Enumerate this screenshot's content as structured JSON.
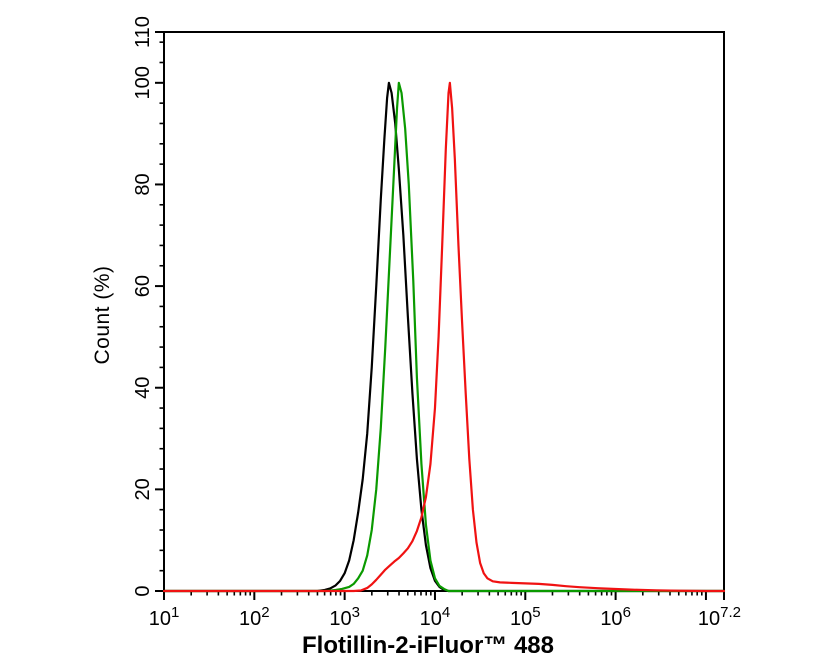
{
  "figure": {
    "background": "#ffffff",
    "axis_color": "#000000"
  },
  "chart_data": {
    "type": "line",
    "title": "",
    "xlabel": "Flotillin-2-iFluor™ 488",
    "ylabel": "Count (%)",
    "x_scale": "log10",
    "x_range_log": [
      1,
      7.2
    ],
    "ylim": [
      0,
      110
    ],
    "grid": false,
    "legend_position": "none",
    "x_major_ticks_log": [
      1,
      2,
      3,
      4,
      5,
      6,
      7,
      7.2
    ],
    "x_minor_ticks": "log-decades 2-9",
    "x_tick_labels": [
      {
        "pos_log": 1.0,
        "base": "10",
        "exp": "1"
      },
      {
        "pos_log": 2.0,
        "base": "10",
        "exp": "2"
      },
      {
        "pos_log": 3.0,
        "base": "10",
        "exp": "3"
      },
      {
        "pos_log": 4.0,
        "base": "10",
        "exp": "4"
      },
      {
        "pos_log": 5.0,
        "base": "10",
        "exp": "5"
      },
      {
        "pos_log": 6.0,
        "base": "10",
        "exp": "6"
      },
      {
        "pos_log": 7.15,
        "base": "10",
        "exp": "7.2"
      }
    ],
    "y_major_ticks": [
      0,
      20,
      40,
      60,
      80,
      100,
      110
    ],
    "y_minor_step": 4,
    "series": [
      {
        "name": "black",
        "color": "#000000",
        "peak_log10": 3.49,
        "peak_pct": 100,
        "points": [
          [
            1.0,
            0
          ],
          [
            2.6,
            0
          ],
          [
            2.7,
            0
          ],
          [
            2.78,
            0.2
          ],
          [
            2.84,
            0.5
          ],
          [
            2.9,
            1.1
          ],
          [
            2.95,
            2
          ],
          [
            3.0,
            3.5
          ],
          [
            3.05,
            6
          ],
          [
            3.1,
            10
          ],
          [
            3.15,
            15.5
          ],
          [
            3.2,
            22
          ],
          [
            3.25,
            31
          ],
          [
            3.3,
            44
          ],
          [
            3.35,
            60
          ],
          [
            3.4,
            77
          ],
          [
            3.44,
            89
          ],
          [
            3.47,
            97
          ],
          [
            3.49,
            100
          ],
          [
            3.52,
            98
          ],
          [
            3.56,
            92
          ],
          [
            3.6,
            83
          ],
          [
            3.65,
            70
          ],
          [
            3.7,
            54
          ],
          [
            3.75,
            39
          ],
          [
            3.8,
            26
          ],
          [
            3.85,
            16
          ],
          [
            3.9,
            9
          ],
          [
            3.95,
            4.5
          ],
          [
            4.0,
            2
          ],
          [
            4.05,
            0.8
          ],
          [
            4.1,
            0.2
          ],
          [
            4.15,
            0
          ],
          [
            7.2,
            0
          ]
        ]
      },
      {
        "name": "green",
        "color": "#0a9a00",
        "peak_log10": 3.6,
        "peak_pct": 100,
        "points": [
          [
            1.0,
            0
          ],
          [
            2.8,
            0
          ],
          [
            2.9,
            0.2
          ],
          [
            2.97,
            0.4
          ],
          [
            3.05,
            0.8
          ],
          [
            3.1,
            1.4
          ],
          [
            3.15,
            2.5
          ],
          [
            3.2,
            4
          ],
          [
            3.25,
            7
          ],
          [
            3.3,
            12
          ],
          [
            3.35,
            20
          ],
          [
            3.4,
            32
          ],
          [
            3.45,
            48
          ],
          [
            3.5,
            66
          ],
          [
            3.55,
            84
          ],
          [
            3.58,
            95
          ],
          [
            3.6,
            100
          ],
          [
            3.63,
            98
          ],
          [
            3.67,
            91
          ],
          [
            3.71,
            80
          ],
          [
            3.76,
            61
          ],
          [
            3.8,
            42
          ],
          [
            3.85,
            25
          ],
          [
            3.9,
            13
          ],
          [
            3.95,
            6
          ],
          [
            4.0,
            2.5
          ],
          [
            4.05,
            1
          ],
          [
            4.1,
            0.4
          ],
          [
            4.15,
            0
          ],
          [
            7.2,
            0
          ]
        ]
      },
      {
        "name": "red",
        "color": "#f01212",
        "peak_log10": 4.16,
        "peak_pct": 100,
        "points": [
          [
            1.0,
            0
          ],
          [
            3.1,
            0
          ],
          [
            3.18,
            0.1
          ],
          [
            3.25,
            0.6
          ],
          [
            3.3,
            1.3
          ],
          [
            3.35,
            2.2
          ],
          [
            3.4,
            3.2
          ],
          [
            3.45,
            4.2
          ],
          [
            3.5,
            5
          ],
          [
            3.55,
            5.8
          ],
          [
            3.6,
            6.5
          ],
          [
            3.65,
            7.4
          ],
          [
            3.7,
            8.4
          ],
          [
            3.75,
            9.8
          ],
          [
            3.8,
            11.8
          ],
          [
            3.85,
            14.5
          ],
          [
            3.9,
            18.5
          ],
          [
            3.95,
            25
          ],
          [
            4.0,
            36
          ],
          [
            4.04,
            50
          ],
          [
            4.08,
            68
          ],
          [
            4.12,
            87
          ],
          [
            4.15,
            98
          ],
          [
            4.165,
            100
          ],
          [
            4.19,
            95
          ],
          [
            4.22,
            85
          ],
          [
            4.26,
            68
          ],
          [
            4.3,
            53
          ],
          [
            4.34,
            39
          ],
          [
            4.38,
            26
          ],
          [
            4.42,
            16
          ],
          [
            4.46,
            9.5
          ],
          [
            4.5,
            5.5
          ],
          [
            4.54,
            3.5
          ],
          [
            4.58,
            2.5
          ],
          [
            4.64,
            1.9
          ],
          [
            4.72,
            1.7
          ],
          [
            4.85,
            1.6
          ],
          [
            5.0,
            1.5
          ],
          [
            5.15,
            1.4
          ],
          [
            5.3,
            1.2
          ],
          [
            5.45,
            0.95
          ],
          [
            5.6,
            0.75
          ],
          [
            5.8,
            0.55
          ],
          [
            6.0,
            0.4
          ],
          [
            6.2,
            0.25
          ],
          [
            6.45,
            0.12
          ],
          [
            6.7,
            0.05
          ],
          [
            7.0,
            0
          ],
          [
            7.2,
            0
          ]
        ]
      }
    ]
  }
}
